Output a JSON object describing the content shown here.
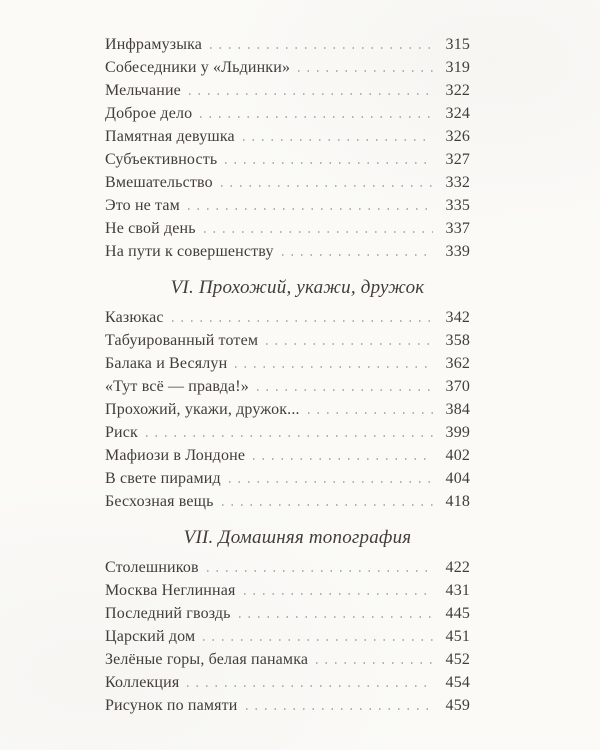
{
  "colors": {
    "background": "#fbfaf7",
    "text": "#413e39",
    "dot_leader": "#b8b4ab"
  },
  "toc": {
    "sections": [
      {
        "header": "",
        "entries": [
          {
            "title": "Инфрамузыка",
            "page": "315"
          },
          {
            "title": "Собеседники у «Льдинки»",
            "page": "319"
          },
          {
            "title": "Мельчание",
            "page": "322"
          },
          {
            "title": "Доброе дело",
            "page": "324"
          },
          {
            "title": "Памятная девушка",
            "page": "326"
          },
          {
            "title": "Субъективность",
            "page": "327"
          },
          {
            "title": "Вмешательство",
            "page": "332"
          },
          {
            "title": "Это не там",
            "page": "335"
          },
          {
            "title": "Не свой день",
            "page": "337"
          },
          {
            "title": "На пути к совершенству",
            "page": "339"
          }
        ]
      },
      {
        "header": "VI. Прохожий, укажи, дружок",
        "entries": [
          {
            "title": "Казюкас",
            "page": "342"
          },
          {
            "title": "Табуированный тотем",
            "page": "358"
          },
          {
            "title": "Балака и Весялун",
            "page": "362"
          },
          {
            "title": "«Тут всё — правда!»",
            "page": "370"
          },
          {
            "title": "Прохожий, укажи, дружок...",
            "page": "384"
          },
          {
            "title": "Риск",
            "page": "399"
          },
          {
            "title": "Мафиози в Лондоне",
            "page": "402"
          },
          {
            "title": "В свете пирамид",
            "page": "404"
          },
          {
            "title": "Бесхозная вещь",
            "page": "418"
          }
        ]
      },
      {
        "header": "VII. Домашняя топография",
        "entries": [
          {
            "title": "Столешников",
            "page": "422"
          },
          {
            "title": "Москва Неглинная",
            "page": "431"
          },
          {
            "title": "Последний гвоздь",
            "page": "445"
          },
          {
            "title": "Царский дом",
            "page": "451"
          },
          {
            "title": "Зелёные горы, белая панамка",
            "page": "452"
          },
          {
            "title": "Коллекция",
            "page": "454"
          },
          {
            "title": "Рисунок по памяти",
            "page": "459"
          }
        ]
      }
    ]
  }
}
